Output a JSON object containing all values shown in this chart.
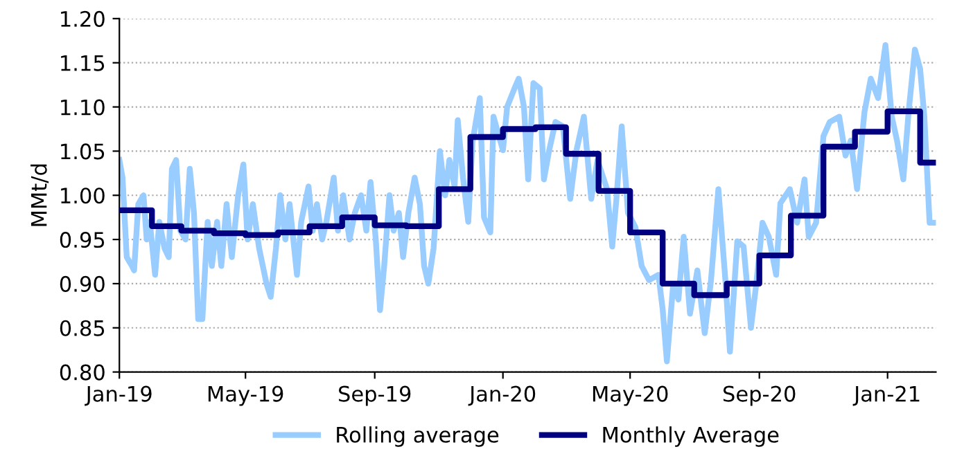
{
  "chart_data": {
    "type": "line",
    "ylabel": "MMt/d",
    "xlim": [
      "2019-01-01",
      "2021-02-16"
    ],
    "xticks": [
      {
        "value": "2019-01-01",
        "label": "Jan-19"
      },
      {
        "value": "2019-05-01",
        "label": "May-19"
      },
      {
        "value": "2019-09-01",
        "label": "Sep-19"
      },
      {
        "value": "2020-01-01",
        "label": "Jan-20"
      },
      {
        "value": "2020-05-01",
        "label": "May-20"
      },
      {
        "value": "2020-09-01",
        "label": "Sep-20"
      },
      {
        "value": "2021-01-01",
        "label": "Jan-21"
      }
    ],
    "ylim": [
      0.8,
      1.2
    ],
    "yticks": [
      {
        "value": 0.8,
        "label": "0.80"
      },
      {
        "value": 0.85,
        "label": "0.85"
      },
      {
        "value": 0.9,
        "label": "0.90"
      },
      {
        "value": 0.95,
        "label": "0.95"
      },
      {
        "value": 1.0,
        "label": "1.00"
      },
      {
        "value": 1.05,
        "label": "1.05"
      },
      {
        "value": 1.1,
        "label": "1.10"
      },
      {
        "value": 1.15,
        "label": "1.15"
      },
      {
        "value": 1.2,
        "label": "1.20"
      }
    ],
    "grid": "y",
    "legend": "bottom",
    "marker": "none",
    "line_style": "solid",
    "series": [
      {
        "name": "Rolling average",
        "color": "#99ccff",
        "x": [
          "2019-01-01",
          "2019-01-04",
          "2019-01-08",
          "2019-01-13",
          "2019-01-15",
          "2019-01-19",
          "2019-01-24",
          "2019-01-27",
          "2019-01-30",
          "2019-02-04",
          "2019-02-08",
          "2019-02-13",
          "2019-02-17",
          "2019-02-20",
          "2019-02-24",
          "2019-02-28",
          "2019-03-05",
          "2019-03-09",
          "2019-03-13",
          "2019-03-17",
          "2019-03-21",
          "2019-03-26",
          "2019-03-30",
          "2019-04-04",
          "2019-04-08",
          "2019-04-13",
          "2019-04-18",
          "2019-04-24",
          "2019-04-29",
          "2019-05-03",
          "2019-05-08",
          "2019-05-14",
          "2019-05-21",
          "2019-05-25",
          "2019-05-30",
          "2019-06-03",
          "2019-06-08",
          "2019-06-12",
          "2019-06-19",
          "2019-06-23",
          "2019-06-30",
          "2019-07-04",
          "2019-07-08",
          "2019-07-13",
          "2019-07-17",
          "2019-07-24",
          "2019-07-28",
          "2019-08-02",
          "2019-08-08",
          "2019-08-13",
          "2019-08-19",
          "2019-08-24",
          "2019-08-28",
          "2019-09-02",
          "2019-09-06",
          "2019-09-10",
          "2019-09-15",
          "2019-09-19",
          "2019-09-24",
          "2019-09-28",
          "2019-10-03",
          "2019-10-09",
          "2019-10-14",
          "2019-10-18",
          "2019-10-22",
          "2019-10-27",
          "2019-11-02",
          "2019-11-07",
          "2019-11-11",
          "2019-11-16",
          "2019-11-19",
          "2019-11-24",
          "2019-11-29",
          "2019-12-03",
          "2019-12-10",
          "2019-12-14",
          "2019-12-20",
          "2019-12-23",
          "2019-12-27",
          "2020-01-01",
          "2020-01-05",
          "2020-01-12",
          "2020-01-16",
          "2020-01-21",
          "2020-01-25",
          "2020-01-30",
          "2020-02-05",
          "2020-02-09",
          "2020-02-14",
          "2020-02-20",
          "2020-02-27",
          "2020-03-05",
          "2020-03-11",
          "2020-03-18",
          "2020-03-25",
          "2020-03-31",
          "2020-04-09",
          "2020-04-14",
          "2020-04-18",
          "2020-04-23",
          "2020-04-29",
          "2020-05-06",
          "2020-05-12",
          "2020-05-19",
          "2020-05-28",
          "2020-06-01",
          "2020-06-05",
          "2020-06-11",
          "2020-06-16",
          "2020-06-21",
          "2020-06-27",
          "2020-07-04",
          "2020-07-11",
          "2020-07-17",
          "2020-07-24",
          "2020-07-31",
          "2020-08-04",
          "2020-08-11",
          "2020-08-17",
          "2020-08-24",
          "2020-08-29",
          "2020-09-04",
          "2020-09-10",
          "2020-09-17",
          "2020-09-21",
          "2020-09-30",
          "2020-10-07",
          "2020-10-14",
          "2020-10-18",
          "2020-10-25",
          "2020-11-01",
          "2020-11-07",
          "2020-11-16",
          "2020-11-22",
          "2020-11-27",
          "2020-12-03",
          "2020-12-10",
          "2020-12-16",
          "2020-12-23",
          "2020-12-30",
          "2021-01-05",
          "2021-01-10",
          "2021-01-16",
          "2021-01-21",
          "2021-01-27",
          "2021-02-01",
          "2021-02-05",
          "2021-02-10",
          "2021-02-15"
        ],
        "values": [
          1.04,
          1.02,
          0.93,
          0.92,
          0.915,
          0.99,
          1.0,
          0.95,
          0.97,
          0.91,
          0.97,
          0.94,
          0.93,
          1.03,
          1.04,
          0.96,
          0.95,
          1.03,
          0.98,
          0.86,
          0.86,
          0.97,
          0.92,
          0.97,
          0.92,
          0.99,
          0.93,
          1.0,
          1.035,
          0.95,
          0.99,
          0.94,
          0.9,
          0.885,
          0.94,
          1.0,
          0.95,
          0.99,
          0.91,
          0.97,
          1.01,
          0.96,
          0.99,
          0.95,
          0.97,
          1.02,
          0.96,
          1.0,
          0.95,
          0.98,
          1.0,
          0.96,
          1.015,
          0.95,
          0.87,
          0.92,
          1.0,
          0.96,
          0.98,
          0.93,
          0.98,
          1.02,
          0.99,
          0.92,
          0.9,
          0.94,
          1.05,
          1.0,
          1.04,
          1.01,
          1.085,
          1.02,
          0.97,
          1.06,
          1.11,
          0.975,
          0.958,
          1.089,
          1.072,
          1.051,
          1.1,
          1.121,
          1.132,
          1.1,
          1.018,
          1.127,
          1.121,
          1.018,
          1.051,
          1.083,
          1.078,
          0.996,
          1.051,
          1.089,
          0.996,
          1.04,
          1.007,
          0.942,
          0.996,
          1.078,
          0.98,
          0.964,
          0.92,
          0.904,
          0.91,
          0.871,
          0.812,
          0.899,
          0.882,
          0.953,
          0.866,
          0.915,
          0.844,
          0.904,
          1.007,
          0.899,
          0.823,
          0.948,
          0.942,
          0.85,
          0.899,
          0.969,
          0.953,
          0.91,
          0.991,
          1.007,
          0.969,
          1.018,
          0.953,
          0.969,
          1.067,
          1.083,
          1.089,
          1.045,
          1.062,
          1.007,
          1.094,
          1.132,
          1.11,
          1.17,
          1.089,
          1.062,
          1.018,
          1.094,
          1.165,
          1.143,
          1.089,
          0.969,
          0.969
        ]
      },
      {
        "name": "Monthly Average",
        "type": "step",
        "color": "#000080",
        "x": [
          "2019-01-01",
          "2019-02-01",
          "2019-03-01",
          "2019-04-01",
          "2019-05-01",
          "2019-06-01",
          "2019-07-01",
          "2019-08-01",
          "2019-09-01",
          "2019-10-01",
          "2019-11-01",
          "2019-12-01",
          "2020-01-01",
          "2020-02-01",
          "2020-03-01",
          "2020-04-01",
          "2020-05-01",
          "2020-06-01",
          "2020-07-01",
          "2020-08-01",
          "2020-09-01",
          "2020-10-01",
          "2020-11-01",
          "2020-12-01",
          "2021-01-01",
          "2021-02-01",
          "2021-02-15"
        ],
        "values": [
          0.983,
          0.965,
          0.96,
          0.957,
          0.955,
          0.958,
          0.965,
          0.975,
          0.966,
          0.965,
          1.007,
          1.066,
          1.075,
          1.077,
          1.047,
          1.005,
          0.958,
          0.9,
          0.887,
          0.9,
          0.932,
          0.977,
          1.055,
          1.072,
          1.095,
          1.037,
          1.037
        ]
      }
    ]
  }
}
